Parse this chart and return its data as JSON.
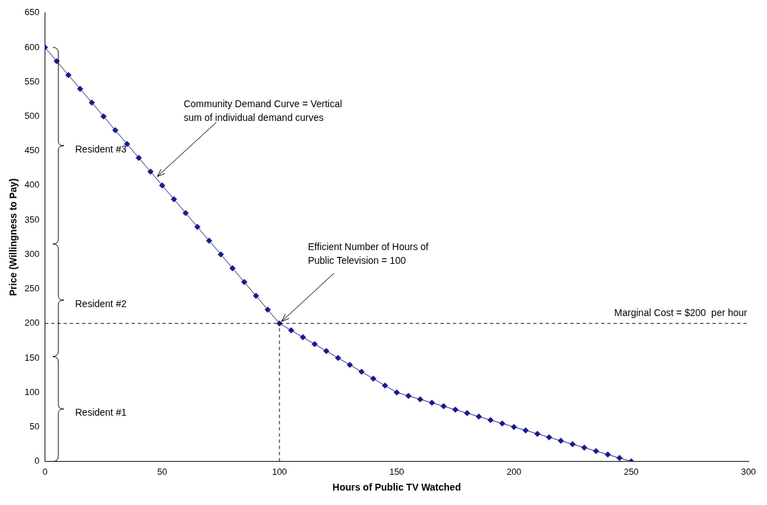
{
  "chart_data": {
    "type": "line",
    "xlabel": "Hours of Public TV Watched",
    "ylabel": "Price (Willingness to Pay)",
    "x": [
      0,
      5,
      10,
      15,
      20,
      25,
      30,
      35,
      40,
      45,
      50,
      55,
      60,
      65,
      70,
      75,
      80,
      85,
      90,
      95,
      100,
      105,
      110,
      115,
      120,
      125,
      130,
      135,
      140,
      145,
      150,
      155,
      160,
      165,
      170,
      175,
      180,
      185,
      190,
      195,
      200,
      205,
      210,
      215,
      220,
      225,
      230,
      235,
      240,
      245,
      250
    ],
    "series": [
      {
        "color": "#1a1a8c",
        "marker": "diamond",
        "values": [
          600,
          580,
          560,
          540,
          520,
          500,
          480,
          460,
          440,
          420,
          400,
          380,
          360,
          340,
          320,
          300,
          280,
          260,
          240,
          220,
          200,
          190,
          180,
          170,
          160,
          150,
          140,
          130,
          120,
          110,
          100,
          95,
          90,
          85,
          80,
          75,
          70,
          65,
          60,
          55,
          50,
          45,
          40,
          35,
          30,
          25,
          20,
          15,
          10,
          5,
          0
        ]
      },
      {
        "type": "line",
        "color": "#000000",
        "marker": "none",
        "line_style": "dashed",
        "x": [
          100,
          100
        ],
        "values": [
          0,
          200
        ]
      }
    ],
    "xlim": [
      0,
      300
    ],
    "xticks": [
      0,
      50,
      100,
      150,
      200,
      250,
      300
    ],
    "ylim": [
      0,
      650
    ],
    "yticks": [
      0,
      50,
      100,
      150,
      200,
      250,
      300,
      350,
      400,
      450,
      500,
      550,
      600,
      650
    ],
    "grid": false,
    "legend": false,
    "ref_lines": [
      {
        "axis": "y",
        "value": 200,
        "label": "Marginal Cost = $200  per hour",
        "color": "#000000",
        "line_style": "dashed"
      }
    ],
    "annotations": [
      {
        "text": "Community Demand Curve = Vertical\nsum of individual demand curves",
        "x": 48,
        "y": 413
      },
      {
        "text": "Efficient Number of Hours of\nPublic Television = 100",
        "x": 101,
        "y": 203
      },
      "Resident #1",
      "Resident #2",
      "Resident #3"
    ]
  }
}
